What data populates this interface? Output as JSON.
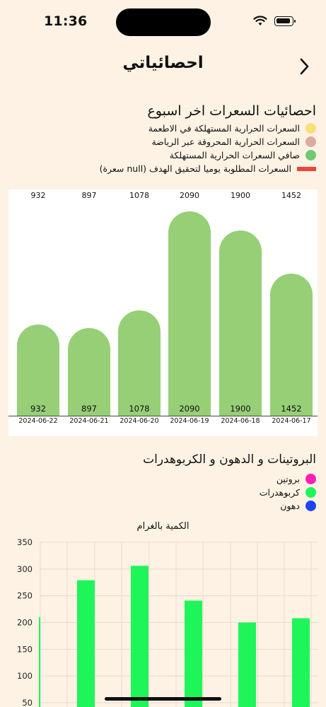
{
  "status": {
    "time": "11:36"
  },
  "header": {
    "title": "احصائياتي"
  },
  "calories": {
    "title": "احصائيات السعرات اخر اسبوع",
    "legend": [
      {
        "label": "السعرات الحرارية المستهلكة في الاطعمة",
        "color": "#f7e07a",
        "shape": "dot"
      },
      {
        "label": "السعرات الحرارية المحروقة عبر الرياضة",
        "color": "#e0a9a0",
        "shape": "dot"
      },
      {
        "label": "صافي السعرات الحرارية المستهلكة",
        "color": "#6ec972",
        "shape": "dot"
      },
      {
        "label": "السعرات المطلوبة يوميا لتحقيق الهدف (null سعرة)",
        "color": "#e8473c",
        "shape": "bar"
      }
    ],
    "chart_data": {
      "type": "bar",
      "categories": [
        "2024-06-22",
        "2024-06-21",
        "2024-06-20",
        "2024-06-19",
        "2024-06-18",
        "2024-06-17"
      ],
      "values": [
        932,
        897,
        1078,
        2090,
        1900,
        1452
      ],
      "ylim": [
        0,
        2100
      ],
      "bar_color": "#96cf76"
    }
  },
  "macros": {
    "title": "البروتينات و الدهون و الكربوهدرات",
    "legend": [
      {
        "label": "بروتين",
        "color": "#ff1fb4"
      },
      {
        "label": "كربوهدرات",
        "color": "#1ef559"
      },
      {
        "label": "دهون",
        "color": "#1d44f0"
      }
    ],
    "chart_data": {
      "type": "bar",
      "title": "الكمية بالغرام",
      "y_ticks": [
        "350",
        "300",
        "250",
        "200",
        "150",
        "100",
        "50"
      ],
      "ylim": [
        0,
        350
      ],
      "series": [
        {
          "color": "#1ef559",
          "values": [
            210,
            279,
            306,
            241,
            200,
            208
          ]
        }
      ],
      "grid": true
    }
  }
}
